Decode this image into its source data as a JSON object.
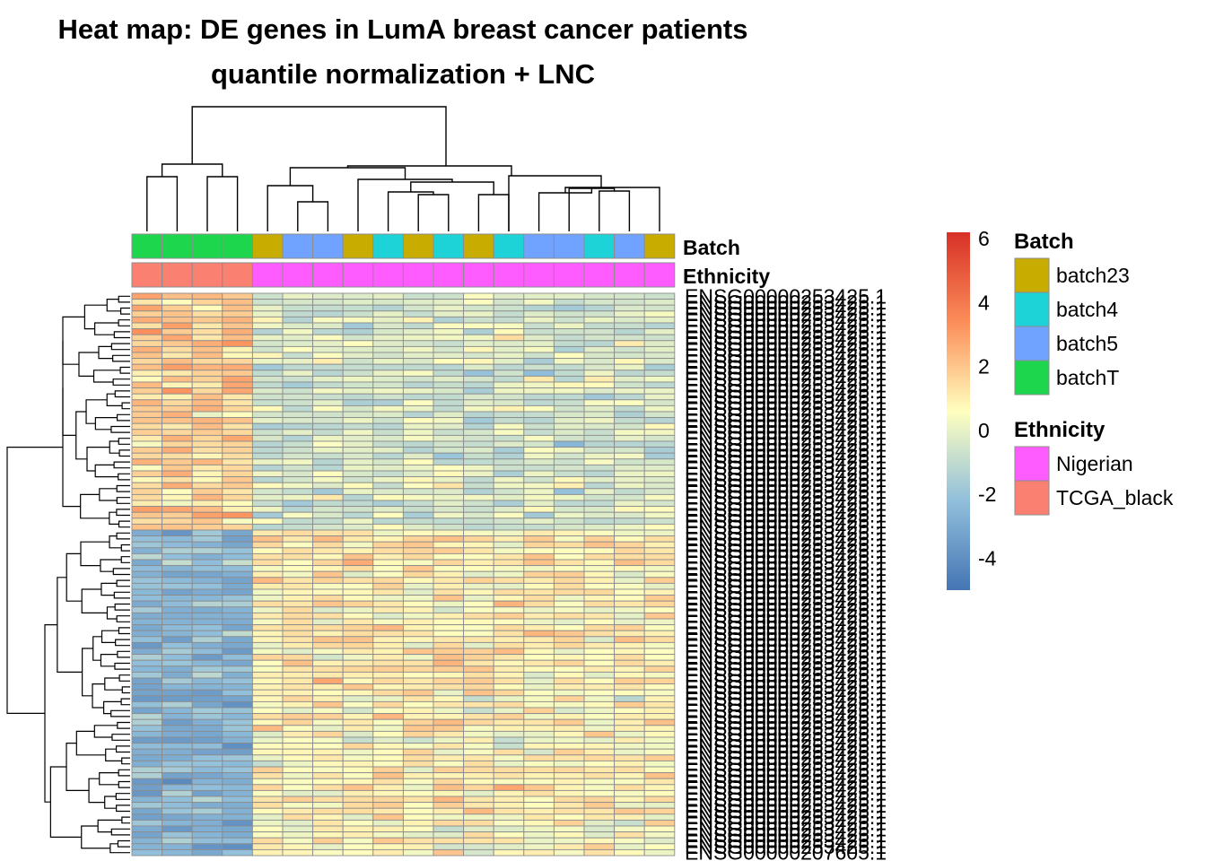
{
  "chart_data": {
    "type": "heatmap",
    "title": "Heat map: DE genes in LumA breast cancer patients",
    "subtitle": "quantile normalization + LNC",
    "n_rows": 95,
    "n_cols": 18,
    "annotation_tracks": [
      "Batch",
      "Ethnicity"
    ],
    "column_annotations": {
      "Batch": [
        "batchT",
        "batchT",
        "batchT",
        "batchT",
        "batch23",
        "batch5",
        "batch5",
        "batch23",
        "batch4",
        "batch23",
        "batch4",
        "batch23",
        "batch4",
        "batch5",
        "batch5",
        "batch4",
        "batch5",
        "batch23"
      ],
      "Ethnicity": [
        "TCGA_black",
        "TCGA_black",
        "TCGA_black",
        "TCGA_black",
        "Nigerian",
        "Nigerian",
        "Nigerian",
        "Nigerian",
        "Nigerian",
        "Nigerian",
        "Nigerian",
        "Nigerian",
        "Nigerian",
        "Nigerian",
        "Nigerian",
        "Nigerian",
        "Nigerian",
        "Nigerian"
      ]
    },
    "row_labels_visible": [
      "ENSG00000253425.1",
      "ENSG00000207605.1"
    ],
    "color_scale": {
      "range": [
        -5,
        6.2
      ],
      "ticks": [
        -4,
        -2,
        0,
        2,
        4,
        6
      ],
      "colors": [
        "#4575b4",
        "#91bfdb",
        "#ffffbf",
        "#fc8d59",
        "#d73027"
      ]
    },
    "row_groups": [
      {
        "rows": 40,
        "tcga_mean": 1.8,
        "nigerian_mean": -0.4
      },
      {
        "rows": 55,
        "tcga_mean": -2.6,
        "nigerian_mean": 0.9
      }
    ],
    "legend": {
      "batch": {
        "title": "Batch",
        "items": [
          {
            "label": "batch23",
            "color": "#c8ad00"
          },
          {
            "label": "batch4",
            "color": "#1dd3d8"
          },
          {
            "label": "batch5",
            "color": "#70a3ff"
          },
          {
            "label": "batchT",
            "color": "#1ed64e"
          }
        ]
      },
      "ethnicity": {
        "title": "Ethnicity",
        "items": [
          {
            "label": "Nigerian",
            "color": "#ff5cff"
          },
          {
            "label": "TCGA_black",
            "color": "#fa8072"
          }
        ]
      }
    }
  }
}
